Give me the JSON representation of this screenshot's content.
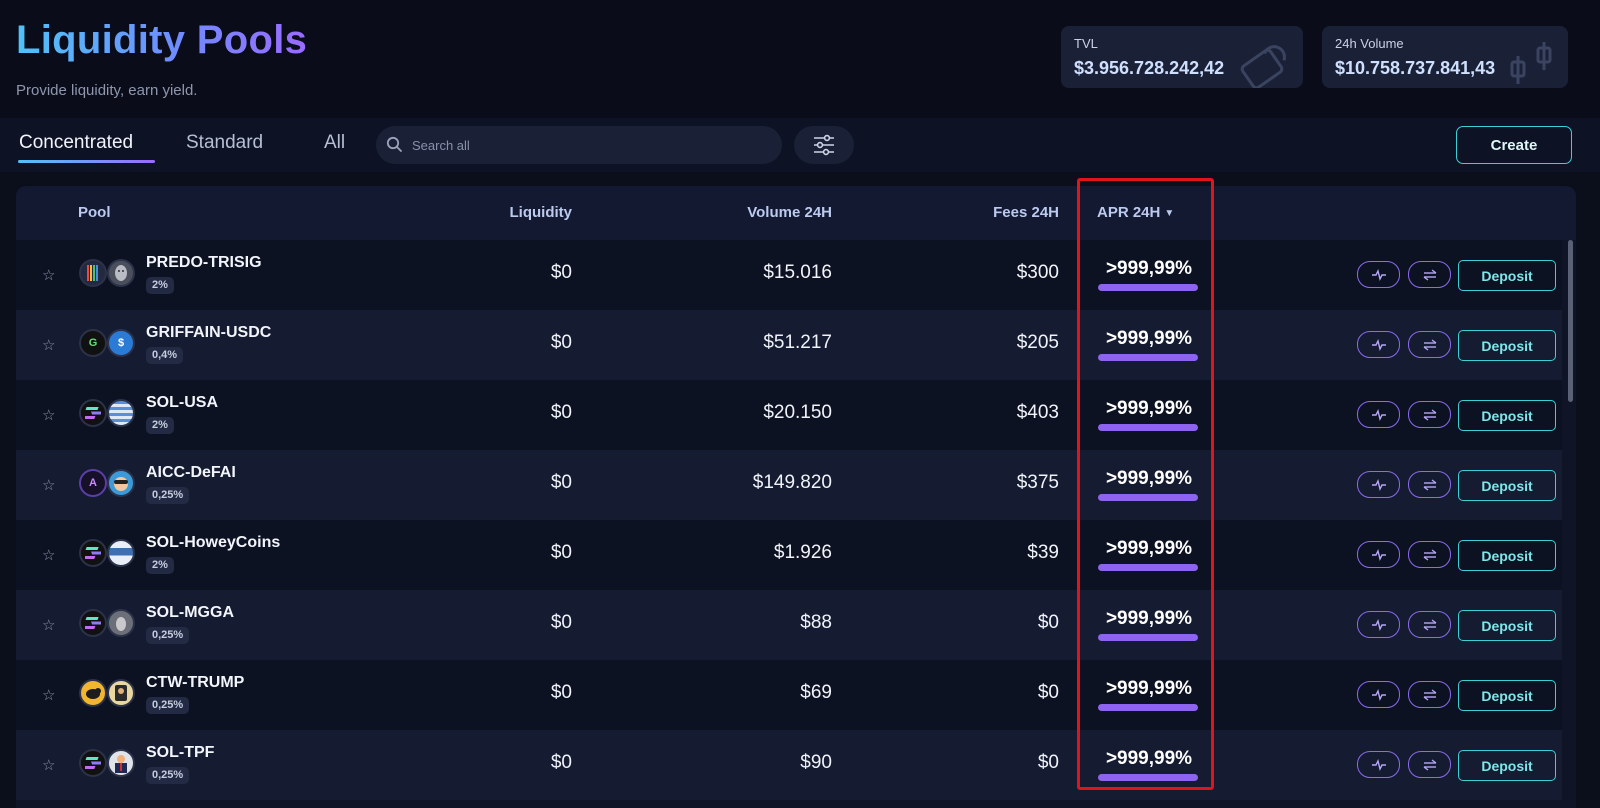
{
  "header": {
    "title": "Liquidity Pools",
    "subtitle": "Provide liquidity, earn yield."
  },
  "stats": {
    "tvl": {
      "label": "TVL",
      "value": "$3.956.728.242,42"
    },
    "volume": {
      "label": "24h Volume",
      "value": "$10.758.737.841,43"
    }
  },
  "tabs": [
    {
      "label": "Concentrated",
      "active": true
    },
    {
      "label": "Standard",
      "active": false
    },
    {
      "label": "All",
      "active": false
    }
  ],
  "search": {
    "placeholder": "Search all"
  },
  "create_label": "Create",
  "columns": {
    "pool": "Pool",
    "liquidity": "Liquidity",
    "volume": "Volume 24H",
    "fees": "Fees 24H",
    "apr": "APR 24H"
  },
  "deposit_label": "Deposit",
  "rows": [
    {
      "name": "PREDO-TRISIG",
      "fee": "2%",
      "liquidity": "$0",
      "volume": "$15.016",
      "fees": "$300",
      "apr": ">999,99%",
      "t1": "",
      "t2": ""
    },
    {
      "name": "GRIFFAIN-USDC",
      "fee": "0,4%",
      "liquidity": "$0",
      "volume": "$51.217",
      "fees": "$205",
      "apr": ">999,99%",
      "t1": "G",
      "t2": "$"
    },
    {
      "name": "SOL-USA",
      "fee": "2%",
      "liquidity": "$0",
      "volume": "$20.150",
      "fees": "$403",
      "apr": ">999,99%",
      "t1": "",
      "t2": ""
    },
    {
      "name": "AICC-DeFAI",
      "fee": "0,25%",
      "liquidity": "$0",
      "volume": "$149.820",
      "fees": "$375",
      "apr": ">999,99%",
      "t1": "A",
      "t2": ""
    },
    {
      "name": "SOL-HoweyCoins",
      "fee": "2%",
      "liquidity": "$0",
      "volume": "$1.926",
      "fees": "$39",
      "apr": ">999,99%",
      "t1": "",
      "t2": ""
    },
    {
      "name": "SOL-MGGA",
      "fee": "0,25%",
      "liquidity": "$0",
      "volume": "$88",
      "fees": "$0",
      "apr": ">999,99%",
      "t1": "",
      "t2": ""
    },
    {
      "name": "CTW-TRUMP",
      "fee": "0,25%",
      "liquidity": "$0",
      "volume": "$69",
      "fees": "$0",
      "apr": ">999,99%",
      "t1": "",
      "t2": ""
    },
    {
      "name": "SOL-TPF",
      "fee": "0,25%",
      "liquidity": "$0",
      "volume": "$90",
      "fees": "$0",
      "apr": ">999,99%",
      "t1": "",
      "t2": ""
    }
  ],
  "icons": {
    "search": "search-icon",
    "filter": "sliders-icon",
    "favorite": "star-icon",
    "chart": "activity-icon",
    "swap": "swap-icon",
    "sort": "caret-down-icon"
  },
  "colors": {
    "accent_purple": "#8d63f0",
    "accent_cyan": "#3ad0d6",
    "highlight_red": "#e0141b"
  }
}
